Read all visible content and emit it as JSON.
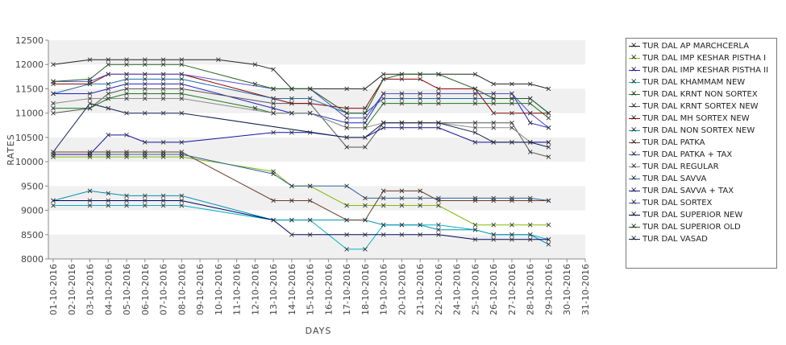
{
  "chart_data": {
    "type": "line",
    "xlabel": "DAYS",
    "ylabel": "RATES",
    "ylim": [
      8000,
      12500
    ],
    "yticks": [
      8000,
      8500,
      9000,
      9500,
      10000,
      10500,
      11000,
      11500,
      12000,
      12500
    ],
    "categories": [
      "01-10-2016",
      "02-10-2016",
      "03-10-2016",
      "04-10-2016",
      "05-10-2016",
      "06-10-2016",
      "07-10-2016",
      "08-10-2016",
      "09-10-2016",
      "10-10-2016",
      "11-10-2016",
      "12-10-2016",
      "13-10-2016",
      "14-10-2016",
      "15-10-2016",
      "16-10-2016",
      "17-10-2016",
      "18-10-2016",
      "19-10-2016",
      "20-10-2016",
      "21-10-2016",
      "22-10-2016",
      "24-10-2016",
      "25-10-2016",
      "26-10-2016",
      "27-10-2016",
      "28-10-2016",
      "29-10-2016",
      "30-10-2016",
      "31-10-2016"
    ],
    "grid": "horizontal bands",
    "legend_position": "right",
    "series": [
      {
        "name": "TUR DAL AP MARCHCERLA",
        "color": "#222222",
        "x": [
          1,
          3,
          4,
          5,
          6,
          7,
          8,
          10,
          12,
          13,
          14,
          15,
          17,
          18,
          19,
          20,
          21,
          22,
          24,
          25,
          26,
          27,
          28
        ],
        "values": [
          12000,
          12100,
          12100,
          12100,
          12100,
          12100,
          12100,
          12100,
          12000,
          11900,
          11500,
          11500,
          11500,
          11500,
          11800,
          11800,
          11800,
          11800,
          11800,
          11600,
          11600,
          11600,
          11500
        ]
      },
      {
        "name": "TUR DAL IMP KESHAR PISTHA I",
        "color": "#7fba00",
        "x": [
          1,
          3,
          4,
          5,
          6,
          7,
          8,
          13,
          14,
          15,
          17,
          18,
          19,
          20,
          21,
          22,
          24,
          25,
          26,
          27,
          28
        ],
        "values": [
          10100,
          10100,
          10100,
          10100,
          10100,
          10100,
          10100,
          9800,
          9500,
          9500,
          9100,
          9100,
          9100,
          9100,
          9100,
          9100,
          8700,
          8700,
          8700,
          8700,
          8700
        ]
      },
      {
        "name": "TUR DAL IMP KESHAR PISTHA II",
        "color": "#2020c0",
        "x": [
          1,
          3,
          4,
          5,
          6,
          7,
          8,
          13,
          14,
          15,
          17,
          18,
          19,
          20,
          21,
          22,
          24,
          25,
          26,
          27,
          28
        ],
        "values": [
          11400,
          11400,
          11500,
          11600,
          11600,
          11600,
          11600,
          11100,
          11000,
          11000,
          10800,
          10800,
          11400,
          11400,
          11400,
          11400,
          11400,
          11400,
          11400,
          10800,
          10700
        ]
      },
      {
        "name": "TUR DAL KHAMMAM NEW",
        "color": "#00b0c8",
        "x": [
          1,
          3,
          4,
          5,
          6,
          7,
          8,
          13,
          14,
          15,
          17,
          18,
          19,
          20,
          21,
          22,
          24,
          25,
          26,
          27,
          28
        ],
        "values": [
          9100,
          9100,
          9100,
          9100,
          9100,
          9100,
          9100,
          8800,
          8800,
          8800,
          8200,
          8200,
          8700,
          8700,
          8700,
          8700,
          8600,
          8500,
          8500,
          8500,
          8400
        ]
      },
      {
        "name": "TUR DAL KRNT NON SORTEX",
        "color": "#1a7a1a",
        "x": [
          1,
          3,
          4,
          5,
          6,
          7,
          8,
          12,
          13,
          14,
          15,
          17,
          18,
          19,
          20,
          21,
          22,
          24,
          25,
          26,
          27,
          28
        ],
        "values": [
          11100,
          11100,
          11300,
          11400,
          11400,
          11400,
          11400,
          11100,
          11000,
          11000,
          11000,
          10700,
          10700,
          11200,
          11200,
          11200,
          11200,
          11200,
          11200,
          11200,
          11200,
          10900
        ]
      },
      {
        "name": "TUR DAL KRNT SORTEX NEW",
        "color": "#555555",
        "x": [
          1,
          3,
          4,
          5,
          6,
          7,
          8,
          13,
          14,
          15,
          17,
          18,
          19,
          20,
          21,
          22,
          24,
          25,
          26,
          27,
          28
        ],
        "values": [
          11000,
          11100,
          11400,
          11500,
          11500,
          11500,
          11500,
          11200,
          11200,
          11200,
          10300,
          10300,
          10800,
          10800,
          10800,
          10800,
          10800,
          10800,
          10800,
          10200,
          10100
        ]
      },
      {
        "name": "TUR DAL MH SORTEX NEW",
        "color": "#8b0000",
        "x": [
          1,
          3,
          4,
          5,
          6,
          7,
          8,
          13,
          14,
          15,
          17,
          18,
          19,
          20,
          21,
          22,
          24,
          25,
          26,
          27,
          28
        ],
        "values": [
          11600,
          11600,
          11800,
          11800,
          11800,
          11800,
          11800,
          11300,
          11200,
          11200,
          11100,
          11100,
          11700,
          11700,
          11700,
          11500,
          11500,
          11000,
          11000,
          11000,
          11000
        ]
      },
      {
        "name": "TUR DAL NON SORTEX NEW",
        "color": "#0090b0",
        "x": [
          1,
          3,
          4,
          5,
          6,
          7,
          8,
          13,
          14,
          15,
          17,
          18,
          19,
          20,
          21,
          22,
          24,
          25,
          26,
          27,
          28
        ],
        "values": [
          9200,
          9400,
          9350,
          9300,
          9300,
          9300,
          9300,
          8800,
          8800,
          8800,
          8800,
          8800,
          8700,
          8700,
          8700,
          8600,
          8600,
          8500,
          8500,
          8500,
          8300
        ]
      },
      {
        "name": "TUR DAL PATKA",
        "color": "#6a3d2a",
        "x": [
          1,
          3,
          4,
          5,
          6,
          7,
          8,
          13,
          14,
          15,
          17,
          18,
          19,
          20,
          21,
          22,
          24,
          25,
          26,
          27,
          28
        ],
        "values": [
          10200,
          10200,
          10200,
          10200,
          10200,
          10200,
          10200,
          9200,
          9200,
          9200,
          8800,
          8800,
          9400,
          9400,
          9400,
          9200,
          9200,
          9200,
          9200,
          9200,
          9200
        ]
      },
      {
        "name": "TUR DAL PATKA + TAX",
        "color": "#3060a0",
        "x": [
          1,
          3,
          4,
          5,
          6,
          7,
          8,
          13,
          14,
          15,
          17,
          18,
          19,
          20,
          21,
          22,
          24,
          25,
          26,
          27,
          28
        ],
        "values": [
          10150,
          10150,
          10150,
          10150,
          10150,
          10150,
          10150,
          9750,
          9500,
          9500,
          9500,
          9250,
          9250,
          9250,
          9250,
          9250,
          9250,
          9250,
          9250,
          9250,
          9200
        ]
      },
      {
        "name": "TUR DAL REGULAR",
        "color": "#8a8a8a",
        "x": [
          1,
          3,
          4,
          5,
          6,
          7,
          8,
          13,
          14,
          15,
          17,
          18,
          19,
          20,
          21,
          22,
          24,
          25,
          26,
          27,
          28
        ],
        "values": [
          11200,
          11300,
          11300,
          11300,
          11300,
          11300,
          11300,
          11000,
          11000,
          11000,
          10700,
          10700,
          10800,
          10800,
          10800,
          10800,
          10700,
          10700,
          10700,
          10400,
          10400
        ]
      },
      {
        "name": "TUR DAL SAVVA",
        "color": "#1f6ea8",
        "x": [
          1,
          3,
          4,
          5,
          6,
          7,
          8,
          13,
          14,
          15,
          17,
          18,
          19,
          20,
          21,
          22,
          24,
          25,
          26,
          27,
          28
        ],
        "values": [
          11400,
          11600,
          11600,
          11700,
          11700,
          11700,
          11700,
          11300,
          11300,
          11300,
          11000,
          11000,
          11300,
          11300,
          11300,
          11300,
          11300,
          11300,
          11300,
          11300,
          11000
        ]
      },
      {
        "name": "TUR DAL SAVVA + TAX",
        "color": "#1010a0",
        "x": [
          1,
          3,
          4,
          5,
          6,
          7,
          8,
          13,
          14,
          15,
          17,
          18,
          19,
          20,
          21,
          22,
          24,
          25,
          26,
          27,
          28
        ],
        "values": [
          10150,
          10150,
          10550,
          10550,
          10400,
          10400,
          10400,
          10600,
          10600,
          10600,
          10500,
          10500,
          10700,
          10700,
          10700,
          10700,
          10400,
          10400,
          10400,
          10400,
          10400
        ]
      },
      {
        "name": "TUR DAL SORTEX",
        "color": "#5050c8",
        "x": [
          1,
          3,
          4,
          5,
          6,
          7,
          8,
          13,
          14,
          15,
          17,
          18,
          19,
          20,
          21,
          22,
          24,
          25,
          26,
          27,
          28
        ],
        "values": [
          11650,
          11650,
          11800,
          11800,
          11800,
          11800,
          11800,
          11500,
          11500,
          11500,
          10900,
          10900,
          11400,
          11400,
          11400,
          11400,
          11400,
          11400,
          11400,
          11000,
          10700
        ]
      },
      {
        "name": "TUR DAL SUPERIOR NEW",
        "color": "#000060",
        "x": [
          1,
          3,
          4,
          5,
          6,
          7,
          8,
          13,
          14,
          15,
          17,
          18,
          19,
          20,
          21,
          22,
          24,
          25,
          26,
          27,
          28
        ],
        "values": [
          9200,
          9200,
          9200,
          9200,
          9200,
          9200,
          9200,
          8800,
          8500,
          8500,
          8500,
          8500,
          8500,
          8500,
          8500,
          8500,
          8400,
          8400,
          8400,
          8400,
          8400
        ]
      },
      {
        "name": "TUR DAL SUPERIOR OLD",
        "color": "#1f5f1f",
        "x": [
          1,
          3,
          4,
          5,
          6,
          7,
          8,
          12,
          13,
          14,
          15,
          17,
          18,
          19,
          20,
          21,
          22,
          24,
          25,
          26,
          27,
          28
        ],
        "values": [
          11650,
          11700,
          12000,
          12000,
          12000,
          12000,
          12000,
          11600,
          11500,
          11500,
          11500,
          11000,
          11000,
          11700,
          11800,
          11800,
          11800,
          11500,
          11300,
          11300,
          11300,
          11000
        ]
      },
      {
        "name": "TUR DAL VASAD",
        "color": "#102050",
        "x": [
          1,
          3,
          4,
          5,
          6,
          7,
          8,
          17,
          18,
          19,
          20,
          21,
          22,
          24,
          25,
          26,
          27,
          28
        ],
        "values": [
          10200,
          11200,
          11100,
          11000,
          11000,
          11000,
          11000,
          10500,
          10500,
          10800,
          10800,
          10800,
          10800,
          10600,
          10400,
          10400,
          10400,
          10300
        ]
      }
    ]
  }
}
